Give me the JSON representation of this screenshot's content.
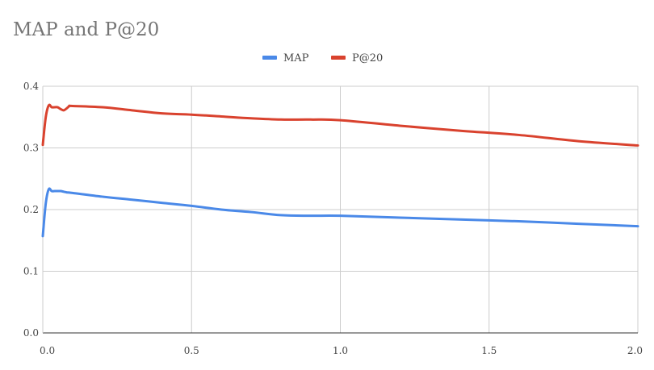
{
  "chart_data": {
    "type": "line",
    "title": "MAP and P@20",
    "xlabel": "",
    "ylabel": "",
    "xlim": [
      0,
      2
    ],
    "ylim": [
      0,
      0.4
    ],
    "x_ticks": [
      "0.0",
      "0.5",
      "1.0",
      "1.5",
      "2.0"
    ],
    "y_ticks": [
      "0.0",
      "0.1",
      "0.2",
      "0.3",
      "0.4"
    ],
    "grid": true,
    "legend_position": "top-center",
    "series": [
      {
        "name": "MAP",
        "color": "#4a89e8",
        "x": [
          0,
          0.01,
          0.02,
          0.03,
          0.04,
          0.05,
          0.06,
          0.07,
          0.08,
          0.1,
          0.2,
          0.3,
          0.4,
          0.5,
          0.6,
          0.7,
          0.8,
          0.9,
          1.0,
          1.2,
          1.4,
          1.6,
          1.8,
          2.0
        ],
        "values": [
          0.157,
          0.21,
          0.233,
          0.23,
          0.23,
          0.23,
          0.23,
          0.229,
          0.228,
          0.227,
          0.221,
          0.216,
          0.211,
          0.206,
          0.2,
          0.196,
          0.191,
          0.19,
          0.19,
          0.187,
          0.184,
          0.181,
          0.177,
          0.173
        ]
      },
      {
        "name": "P@20",
        "color": "#d9422e",
        "x": [
          0,
          0.01,
          0.02,
          0.03,
          0.04,
          0.05,
          0.06,
          0.07,
          0.08,
          0.09,
          0.1,
          0.2,
          0.3,
          0.4,
          0.5,
          0.6,
          0.7,
          0.8,
          0.9,
          1.0,
          1.2,
          1.4,
          1.6,
          1.8,
          2.0
        ],
        "values": [
          0.305,
          0.35,
          0.369,
          0.366,
          0.366,
          0.366,
          0.363,
          0.361,
          0.364,
          0.368,
          0.368,
          0.366,
          0.361,
          0.356,
          0.354,
          0.351,
          0.348,
          0.346,
          0.346,
          0.345,
          0.336,
          0.328,
          0.321,
          0.311,
          0.304
        ]
      }
    ]
  }
}
